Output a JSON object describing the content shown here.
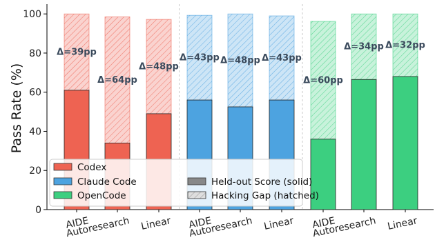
{
  "chart_data": {
    "type": "bar",
    "ylabel": "Pass Rate (%)",
    "ylim": [
      0,
      105
    ],
    "yticks": [
      0,
      20,
      40,
      60,
      80,
      100
    ],
    "groups": [
      {
        "name": "Codex",
        "color": "#ee6352",
        "bars": [
          {
            "category": "AIDE",
            "heldout": 61,
            "total": 100,
            "gap_label": "Δ=39pp"
          },
          {
            "category": "Autoresearch",
            "heldout": 34,
            "total": 98.5,
            "gap_label": "Δ=64pp"
          },
          {
            "category": "Linear",
            "heldout": 49,
            "total": 97.2,
            "gap_label": "Δ=48pp"
          }
        ]
      },
      {
        "name": "Claude Code",
        "color": "#4da3e0",
        "bars": [
          {
            "category": "AIDE",
            "heldout": 56,
            "total": 99.3,
            "gap_label": "Δ=43pp"
          },
          {
            "category": "Autoresearch",
            "heldout": 52.5,
            "total": 100,
            "gap_label": "Δ=48pp"
          },
          {
            "category": "Linear",
            "heldout": 56,
            "total": 99,
            "gap_label": "Δ=43pp"
          }
        ]
      },
      {
        "name": "OpenCode",
        "color": "#3ccf80",
        "bars": [
          {
            "category": "AIDE",
            "heldout": 36,
            "total": 96.2,
            "gap_label": "Δ=60pp"
          },
          {
            "category": "Autoresearch",
            "heldout": 66.5,
            "total": 100,
            "gap_label": "Δ=34pp"
          },
          {
            "category": "Linear",
            "heldout": 68,
            "total": 100,
            "gap_label": "Δ=32pp"
          }
        ]
      }
    ],
    "legend": {
      "placement": "bottom-left",
      "items": [
        {
          "label": "Codex",
          "style": "solid",
          "color": "#ee6352"
        },
        {
          "label": "Held-out Score (solid)",
          "style": "solid",
          "color": "#888888"
        },
        {
          "label": "Claude Code",
          "style": "solid",
          "color": "#4da3e0"
        },
        {
          "label": "Hacking Gap (hatched)",
          "style": "hatched",
          "color": "#cccccc"
        },
        {
          "label": "OpenCode",
          "style": "solid",
          "color": "#3ccf80"
        }
      ]
    },
    "grid": false
  }
}
